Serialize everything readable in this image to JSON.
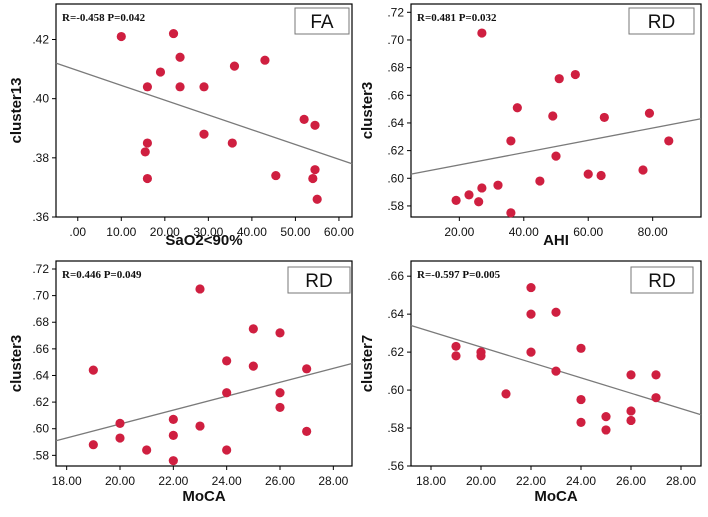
{
  "chart_data": [
    {
      "type": "scatter",
      "tag": "FA",
      "stat": "R=-0.458 P=0.042",
      "xlabel": "SaO2<90%",
      "ylabel": "cluster13",
      "xlim": [
        -5,
        63
      ],
      "ylim": [
        0.36,
        0.432
      ],
      "xticks": [
        0,
        10,
        20,
        30,
        40,
        50,
        60
      ],
      "xtick_labels": [
        ".00",
        "10.00",
        "20.00",
        "30.00",
        "40.00",
        "50.00",
        "60.00"
      ],
      "yticks": [
        0.36,
        0.38,
        0.4,
        0.42
      ],
      "ytick_labels": [
        ".36",
        ".38",
        ".40",
        ".42"
      ],
      "fit": [
        [
          -5,
          0.412
        ],
        [
          63,
          0.378
        ]
      ],
      "points": [
        [
          10,
          0.421
        ],
        [
          22,
          0.422
        ],
        [
          23.5,
          0.414
        ],
        [
          19,
          0.409
        ],
        [
          16,
          0.404
        ],
        [
          23.5,
          0.404
        ],
        [
          29,
          0.404
        ],
        [
          36,
          0.411
        ],
        [
          43,
          0.413
        ],
        [
          29,
          0.388
        ],
        [
          16,
          0.385
        ],
        [
          15.5,
          0.382
        ],
        [
          16,
          0.373
        ],
        [
          35.5,
          0.385
        ],
        [
          45.5,
          0.374
        ],
        [
          52,
          0.393
        ],
        [
          54.5,
          0.391
        ],
        [
          54.5,
          0.376
        ],
        [
          54,
          0.373
        ],
        [
          55,
          0.366
        ]
      ]
    },
    {
      "type": "scatter",
      "tag": "RD",
      "stat": "R=0.481 P=0.032",
      "xlabel": "AHI",
      "ylabel": "cluster3",
      "xlim": [
        5,
        95
      ],
      "ylim": [
        0.572,
        0.726
      ],
      "xticks": [
        20,
        40,
        60,
        80
      ],
      "xtick_labels": [
        "20.00",
        "40.00",
        "60.00",
        "80.00"
      ],
      "yticks": [
        0.58,
        0.6,
        0.62,
        0.64,
        0.66,
        0.68,
        0.7,
        0.72
      ],
      "ytick_labels": [
        ".58",
        ".60",
        ".62",
        ".64",
        ".66",
        ".68",
        ".70",
        ".72"
      ],
      "fit": [
        [
          5,
          0.603
        ],
        [
          95,
          0.643
        ]
      ],
      "points": [
        [
          27,
          0.705
        ],
        [
          51,
          0.672
        ],
        [
          56,
          0.675
        ],
        [
          38,
          0.651
        ],
        [
          49,
          0.645
        ],
        [
          79,
          0.647
        ],
        [
          65,
          0.644
        ],
        [
          36,
          0.627
        ],
        [
          85,
          0.627
        ],
        [
          50,
          0.616
        ],
        [
          60,
          0.603
        ],
        [
          64,
          0.602
        ],
        [
          77,
          0.606
        ],
        [
          45,
          0.598
        ],
        [
          32,
          0.595
        ],
        [
          27,
          0.593
        ],
        [
          23,
          0.588
        ],
        [
          19,
          0.584
        ],
        [
          26,
          0.583
        ],
        [
          36,
          0.575
        ]
      ]
    },
    {
      "type": "scatter",
      "tag": "RD",
      "stat": "R=0.446 P=0.049",
      "xlabel": "MoCA",
      "ylabel": "cluster3",
      "xlim": [
        17.6,
        28.7
      ],
      "ylim": [
        0.572,
        0.726
      ],
      "xticks": [
        18,
        20,
        22,
        24,
        26,
        28
      ],
      "xtick_labels": [
        "18.00",
        "20.00",
        "22.00",
        "24.00",
        "26.00",
        "28.00"
      ],
      "yticks": [
        0.58,
        0.6,
        0.62,
        0.64,
        0.66,
        0.68,
        0.7,
        0.72
      ],
      "ytick_labels": [
        ".58",
        ".60",
        ".62",
        ".64",
        ".66",
        ".68",
        ".70",
        ".72"
      ],
      "fit": [
        [
          17.6,
          0.591
        ],
        [
          28.7,
          0.649
        ]
      ],
      "points": [
        [
          23,
          0.705
        ],
        [
          25,
          0.675
        ],
        [
          26,
          0.672
        ],
        [
          24,
          0.651
        ],
        [
          25,
          0.647
        ],
        [
          19,
          0.644
        ],
        [
          27,
          0.645
        ],
        [
          24,
          0.627
        ],
        [
          26,
          0.627
        ],
        [
          26,
          0.616
        ],
        [
          22,
          0.607
        ],
        [
          20,
          0.604
        ],
        [
          23,
          0.602
        ],
        [
          27,
          0.598
        ],
        [
          20,
          0.593
        ],
        [
          22,
          0.595
        ],
        [
          19,
          0.588
        ],
        [
          21,
          0.584
        ],
        [
          24,
          0.584
        ],
        [
          22,
          0.576
        ]
      ]
    },
    {
      "type": "scatter",
      "tag": "RD",
      "stat": "R=-0.597 P=0.005",
      "xlabel": "MoCA",
      "ylabel": "cluster7",
      "xlim": [
        17.2,
        28.8
      ],
      "ylim": [
        0.56,
        0.668
      ],
      "xticks": [
        18,
        20,
        22,
        24,
        26,
        28
      ],
      "xtick_labels": [
        "18.00",
        "20.00",
        "22.00",
        "24.00",
        "26.00",
        "28.00"
      ],
      "yticks": [
        0.56,
        0.58,
        0.6,
        0.62,
        0.64,
        0.66
      ],
      "ytick_labels": [
        ".56",
        ".58",
        ".60",
        ".62",
        ".64",
        ".66"
      ],
      "fit": [
        [
          17.2,
          0.634
        ],
        [
          28.8,
          0.587
        ]
      ],
      "points": [
        [
          22,
          0.654
        ],
        [
          22,
          0.64
        ],
        [
          23,
          0.641
        ],
        [
          19,
          0.623
        ],
        [
          19,
          0.618
        ],
        [
          20,
          0.62
        ],
        [
          20,
          0.618
        ],
        [
          22,
          0.62
        ],
        [
          24,
          0.622
        ],
        [
          23,
          0.61
        ],
        [
          26,
          0.608
        ],
        [
          27,
          0.608
        ],
        [
          21,
          0.598
        ],
        [
          24,
          0.595
        ],
        [
          27,
          0.596
        ],
        [
          26,
          0.589
        ],
        [
          25,
          0.586
        ],
        [
          26,
          0.584
        ],
        [
          24,
          0.583
        ],
        [
          25,
          0.579
        ]
      ]
    }
  ],
  "colors": {
    "point": "#cf1f40",
    "fit": "#7a7a7a"
  }
}
